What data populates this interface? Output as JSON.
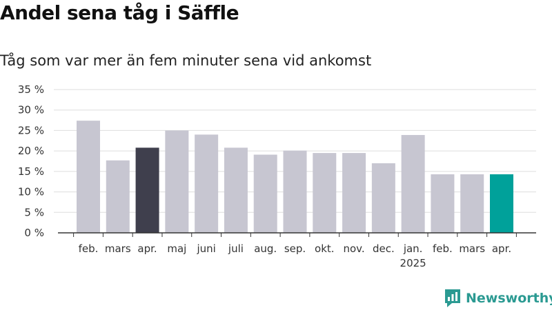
{
  "title": "Andel sena tåg i Säffle",
  "subtitle": "Tåg som var mer än fem minuter sena vid ankomst",
  "brand": "Newsworthy",
  "colors": {
    "bar_default": "#c7c6d1",
    "bar_dark": "#3f3f4d",
    "bar_accent": "#00a19a",
    "grid": "#dddddd",
    "axis": "#333333",
    "brand": "#2b9a92"
  },
  "chart_data": {
    "type": "bar",
    "title": "Andel sena tåg i Säffle",
    "xlabel": "",
    "ylabel": "",
    "ylim": [
      0,
      35
    ],
    "yticks": [
      0,
      5,
      10,
      15,
      20,
      25,
      30,
      35
    ],
    "ytick_labels": [
      "0 %",
      "5 %",
      "10 %",
      "15 %",
      "20 %",
      "25 %",
      "30 %",
      "35 %"
    ],
    "grid": true,
    "categories": [
      "feb.",
      "mars",
      "apr.",
      "maj",
      "juni",
      "juli",
      "aug.",
      "sep.",
      "okt.",
      "nov.",
      "dec.",
      "jan.",
      "feb.",
      "mars",
      "apr."
    ],
    "year_label": "2025",
    "values": [
      27.4,
      17.7,
      20.8,
      25.0,
      24.0,
      20.8,
      19.1,
      20.1,
      19.5,
      19.5,
      17.0,
      23.9,
      14.3,
      14.3,
      14.3
    ],
    "bar_colors": [
      "#c7c6d1",
      "#c7c6d1",
      "#3f3f4d",
      "#c7c6d1",
      "#c7c6d1",
      "#c7c6d1",
      "#c7c6d1",
      "#c7c6d1",
      "#c7c6d1",
      "#c7c6d1",
      "#c7c6d1",
      "#c7c6d1",
      "#c7c6d1",
      "#c7c6d1",
      "#00a19a"
    ]
  }
}
